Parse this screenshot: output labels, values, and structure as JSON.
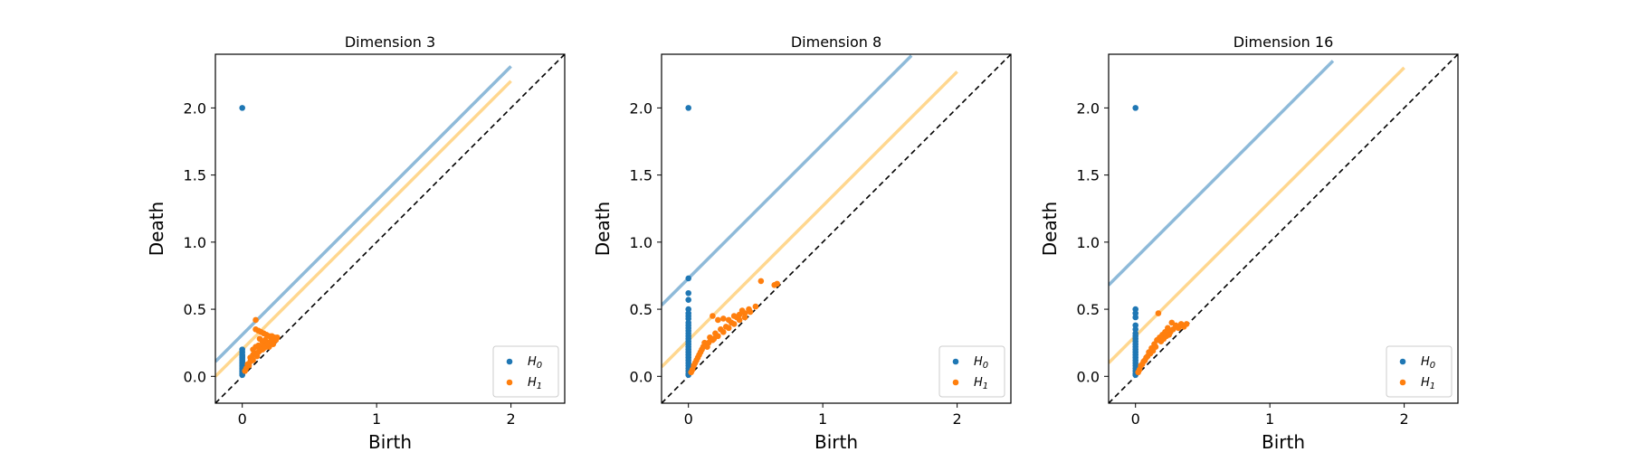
{
  "colors": {
    "h0": "#1f77b4",
    "h1": "#ff7f0e",
    "band_h0": "#8ebad9",
    "band_h1": "#ffd78f",
    "diagonal": "#000000",
    "frame": "#000000"
  },
  "chart_data": [
    {
      "type": "scatter",
      "title": "Dimension 3",
      "xlabel": "Birth",
      "ylabel": "Death",
      "xlim": [
        -0.2,
        2.4
      ],
      "ylim": [
        -0.2,
        2.4
      ],
      "xticks": [
        0,
        1,
        2
      ],
      "xtick_labels": [
        "0",
        "1",
        "2"
      ],
      "yticks": [
        0.0,
        0.5,
        1.0,
        1.5,
        2.0
      ],
      "ytick_labels": [
        "0.0",
        "0.5",
        "1.0",
        "1.5",
        "2.0"
      ],
      "legend": {
        "placement": "bottom-right",
        "entries": [
          "H0",
          "H1"
        ]
      },
      "confidence_bands": {
        "h0_offset": 0.31,
        "h0_end": 2.0,
        "h1_offset": 0.2,
        "h1_end": 2.0
      },
      "series": [
        {
          "name": "H0",
          "points": [
            [
              0,
              2.0
            ],
            [
              0,
              0.2
            ],
            [
              0,
              0.18
            ],
            [
              0,
              0.16
            ],
            [
              0,
              0.15
            ],
            [
              0,
              0.14
            ],
            [
              0,
              0.13
            ],
            [
              0,
              0.12
            ],
            [
              0,
              0.11
            ],
            [
              0,
              0.1
            ],
            [
              0,
              0.09
            ],
            [
              0,
              0.08
            ],
            [
              0,
              0.07
            ],
            [
              0,
              0.06
            ],
            [
              0,
              0.05
            ],
            [
              0,
              0.04
            ],
            [
              0,
              0.03
            ],
            [
              0,
              0.02
            ],
            [
              0,
              0.01
            ]
          ]
        },
        {
          "name": "H1",
          "points": [
            [
              0.1,
              0.42
            ],
            [
              0.1,
              0.35
            ],
            [
              0.12,
              0.34
            ],
            [
              0.14,
              0.33
            ],
            [
              0.16,
              0.32
            ],
            [
              0.18,
              0.31
            ],
            [
              0.2,
              0.3
            ],
            [
              0.22,
              0.3
            ],
            [
              0.24,
              0.29
            ],
            [
              0.25,
              0.27
            ],
            [
              0.13,
              0.28
            ],
            [
              0.15,
              0.26
            ],
            [
              0.17,
              0.27
            ],
            [
              0.19,
              0.25
            ],
            [
              0.21,
              0.26
            ],
            [
              0.23,
              0.24
            ],
            [
              0.08,
              0.2
            ],
            [
              0.1,
              0.22
            ],
            [
              0.12,
              0.23
            ],
            [
              0.14,
              0.22
            ],
            [
              0.16,
              0.21
            ],
            [
              0.18,
              0.22
            ],
            [
              0.2,
              0.22
            ],
            [
              0.06,
              0.14
            ],
            [
              0.08,
              0.16
            ],
            [
              0.1,
              0.17
            ],
            [
              0.12,
              0.18
            ],
            [
              0.04,
              0.09
            ],
            [
              0.06,
              0.11
            ],
            [
              0.08,
              0.12
            ],
            [
              0.03,
              0.06
            ],
            [
              0.05,
              0.08
            ],
            [
              0.02,
              0.04
            ],
            [
              0.11,
              0.15
            ],
            [
              0.13,
              0.19
            ],
            [
              0.15,
              0.2
            ],
            [
              0.17,
              0.23
            ],
            [
              0.19,
              0.24
            ],
            [
              0.22,
              0.26
            ],
            [
              0.24,
              0.28
            ],
            [
              0.26,
              0.29
            ]
          ]
        }
      ]
    },
    {
      "type": "scatter",
      "title": "Dimension 8",
      "xlabel": "Birth",
      "ylabel": "Death",
      "xlim": [
        -0.2,
        2.4
      ],
      "ylim": [
        -0.2,
        2.4
      ],
      "xticks": [
        0,
        1,
        2
      ],
      "xtick_labels": [
        "0",
        "1",
        "2"
      ],
      "yticks": [
        0.0,
        0.5,
        1.0,
        1.5,
        2.0
      ],
      "ytick_labels": [
        "0.0",
        "0.5",
        "1.0",
        "1.5",
        "2.0"
      ],
      "legend": {
        "placement": "bottom-right",
        "entries": [
          "H0",
          "H1"
        ]
      },
      "confidence_bands": {
        "h0_offset": 0.73,
        "h0_end": 1.66,
        "h1_offset": 0.27,
        "h1_end": 2.0
      },
      "series": [
        {
          "name": "H0",
          "points": [
            [
              0,
              2.0
            ],
            [
              0,
              0.73
            ],
            [
              0,
              0.62
            ],
            [
              0,
              0.57
            ],
            [
              0,
              0.5
            ],
            [
              0,
              0.47
            ],
            [
              0,
              0.45
            ],
            [
              0,
              0.43
            ],
            [
              0,
              0.4
            ],
            [
              0,
              0.38
            ],
            [
              0,
              0.36
            ],
            [
              0,
              0.34
            ],
            [
              0,
              0.32
            ],
            [
              0,
              0.3
            ],
            [
              0,
              0.28
            ],
            [
              0,
              0.26
            ],
            [
              0,
              0.24
            ],
            [
              0,
              0.22
            ],
            [
              0,
              0.2
            ],
            [
              0,
              0.18
            ],
            [
              0,
              0.16
            ],
            [
              0,
              0.14
            ],
            [
              0,
              0.12
            ],
            [
              0,
              0.1
            ],
            [
              0,
              0.08
            ],
            [
              0,
              0.06
            ],
            [
              0,
              0.04
            ],
            [
              0,
              0.02
            ],
            [
              0,
              0.01
            ]
          ]
        },
        {
          "name": "H1",
          "points": [
            [
              0.18,
              0.45
            ],
            [
              0.22,
              0.42
            ],
            [
              0.26,
              0.43
            ],
            [
              0.3,
              0.42
            ],
            [
              0.34,
              0.45
            ],
            [
              0.38,
              0.46
            ],
            [
              0.42,
              0.47
            ],
            [
              0.45,
              0.5
            ],
            [
              0.54,
              0.71
            ],
            [
              0.64,
              0.68
            ],
            [
              0.66,
              0.69
            ],
            [
              0.4,
              0.49
            ],
            [
              0.36,
              0.44
            ],
            [
              0.32,
              0.4
            ],
            [
              0.28,
              0.37
            ],
            [
              0.24,
              0.35
            ],
            [
              0.2,
              0.32
            ],
            [
              0.16,
              0.29
            ],
            [
              0.12,
              0.25
            ],
            [
              0.1,
              0.2
            ],
            [
              0.08,
              0.16
            ],
            [
              0.06,
              0.12
            ],
            [
              0.04,
              0.08
            ],
            [
              0.03,
              0.05
            ],
            [
              0.02,
              0.03
            ],
            [
              0.14,
              0.22
            ],
            [
              0.18,
              0.27
            ],
            [
              0.22,
              0.3
            ],
            [
              0.26,
              0.33
            ],
            [
              0.3,
              0.36
            ],
            [
              0.34,
              0.39
            ],
            [
              0.38,
              0.42
            ],
            [
              0.42,
              0.44
            ],
            [
              0.46,
              0.48
            ],
            [
              0.5,
              0.52
            ],
            [
              0.05,
              0.1
            ],
            [
              0.07,
              0.14
            ],
            [
              0.09,
              0.18
            ],
            [
              0.11,
              0.22
            ],
            [
              0.15,
              0.25
            ],
            [
              0.19,
              0.28
            ]
          ]
        }
      ]
    },
    {
      "type": "scatter",
      "title": "Dimension 16",
      "xlabel": "Birth",
      "ylabel": "Death",
      "xlim": [
        -0.2,
        2.4
      ],
      "ylim": [
        -0.2,
        2.4
      ],
      "xticks": [
        0,
        1,
        2
      ],
      "xtick_labels": [
        "0",
        "1",
        "2"
      ],
      "yticks": [
        0.0,
        0.5,
        1.0,
        1.5,
        2.0
      ],
      "ytick_labels": [
        "0.0",
        "0.5",
        "1.0",
        "1.5",
        "2.0"
      ],
      "legend": {
        "placement": "bottom-right",
        "entries": [
          "H0",
          "H1"
        ]
      },
      "confidence_bands": {
        "h0_offset": 0.88,
        "h0_end": 1.47,
        "h1_offset": 0.3,
        "h1_end": 2.0
      },
      "series": [
        {
          "name": "H0",
          "points": [
            [
              0,
              2.0
            ],
            [
              0,
              0.5
            ],
            [
              0,
              0.47
            ],
            [
              0,
              0.44
            ],
            [
              0,
              0.38
            ],
            [
              0,
              0.35
            ],
            [
              0,
              0.32
            ],
            [
              0,
              0.3
            ],
            [
              0,
              0.28
            ],
            [
              0,
              0.26
            ],
            [
              0,
              0.24
            ],
            [
              0,
              0.22
            ],
            [
              0,
              0.2
            ],
            [
              0,
              0.18
            ],
            [
              0,
              0.16
            ],
            [
              0,
              0.14
            ],
            [
              0,
              0.12
            ],
            [
              0,
              0.1
            ],
            [
              0,
              0.08
            ],
            [
              0,
              0.06
            ],
            [
              0,
              0.04
            ],
            [
              0,
              0.02
            ],
            [
              0,
              0.01
            ]
          ]
        },
        {
          "name": "H1",
          "points": [
            [
              0.17,
              0.47
            ],
            [
              0.27,
              0.4
            ],
            [
              0.3,
              0.38
            ],
            [
              0.34,
              0.39
            ],
            [
              0.36,
              0.37
            ],
            [
              0.38,
              0.39
            ],
            [
              0.24,
              0.36
            ],
            [
              0.22,
              0.33
            ],
            [
              0.2,
              0.31
            ],
            [
              0.18,
              0.29
            ],
            [
              0.16,
              0.27
            ],
            [
              0.14,
              0.24
            ],
            [
              0.12,
              0.21
            ],
            [
              0.1,
              0.18
            ],
            [
              0.08,
              0.14
            ],
            [
              0.06,
              0.11
            ],
            [
              0.04,
              0.08
            ],
            [
              0.03,
              0.05
            ],
            [
              0.02,
              0.03
            ],
            [
              0.26,
              0.33
            ],
            [
              0.28,
              0.35
            ],
            [
              0.32,
              0.36
            ],
            [
              0.13,
              0.19
            ],
            [
              0.15,
              0.22
            ],
            [
              0.19,
              0.26
            ],
            [
              0.21,
              0.28
            ],
            [
              0.23,
              0.3
            ],
            [
              0.25,
              0.31
            ],
            [
              0.09,
              0.15
            ],
            [
              0.11,
              0.17
            ],
            [
              0.07,
              0.12
            ],
            [
              0.05,
              0.09
            ]
          ]
        }
      ]
    }
  ]
}
